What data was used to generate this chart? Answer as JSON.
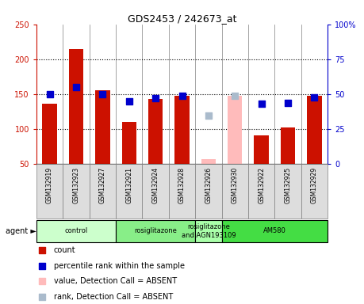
{
  "title": "GDS2453 / 242673_at",
  "samples": [
    "GSM132919",
    "GSM132923",
    "GSM132927",
    "GSM132921",
    "GSM132924",
    "GSM132928",
    "GSM132926",
    "GSM132930",
    "GSM132922",
    "GSM132925",
    "GSM132929"
  ],
  "bar_values": [
    136,
    215,
    156,
    110,
    143,
    148,
    null,
    null,
    91,
    103,
    148
  ],
  "bar_absent_values": [
    null,
    null,
    null,
    null,
    null,
    null,
    57,
    148,
    null,
    null,
    null
  ],
  "rank_values": [
    50,
    55,
    50,
    45,
    47,
    49,
    null,
    null,
    43,
    44,
    48
  ],
  "rank_absent_values": [
    null,
    null,
    null,
    null,
    null,
    null,
    35,
    49,
    null,
    null,
    null
  ],
  "bar_color": "#cc1100",
  "bar_absent_color": "#ffbbbb",
  "rank_color": "#0000cc",
  "rank_absent_color": "#aabbcc",
  "ylim": [
    50,
    250
  ],
  "y2lim": [
    0,
    100
  ],
  "yticks": [
    50,
    100,
    150,
    200,
    250
  ],
  "y2ticks": [
    0,
    25,
    50,
    75,
    100
  ],
  "groups": [
    {
      "label": "control",
      "start": 0,
      "end": 3,
      "color": "#ccffcc"
    },
    {
      "label": "rosiglitazone",
      "start": 3,
      "end": 6,
      "color": "#88ee88"
    },
    {
      "label": "rosiglitazone\nand AGN193109",
      "start": 6,
      "end": 7,
      "color": "#aaffaa"
    },
    {
      "label": "AM580",
      "start": 7,
      "end": 11,
      "color": "#44dd44"
    }
  ],
  "bar_width": 0.55,
  "rank_marker_size": 40,
  "dotted_gridlines": [
    100,
    150,
    200
  ],
  "left_axis_color": "#cc1100",
  "right_axis_color": "#0000cc",
  "sample_box_color": "#dddddd",
  "grid_color": "black"
}
